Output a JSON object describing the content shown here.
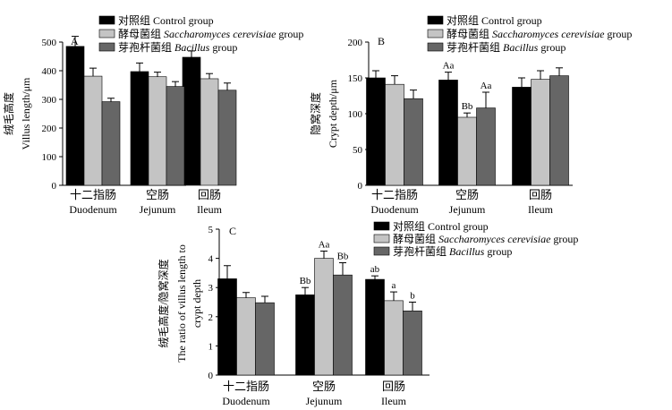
{
  "colors": {
    "control": "#000000",
    "saccharomyces": "#c4c4c4",
    "bacillus": "#666666"
  },
  "chart_data": [
    {
      "panel": "A",
      "type": "bar",
      "ylabel_cn": "绒毛高度",
      "ylabel_en": "Villus length/μm",
      "ylim": [
        0,
        500
      ],
      "yticks": [
        "0",
        "100",
        "200",
        "300",
        "400",
        "500"
      ],
      "categories_cn": [
        "十二指肠",
        "空肠",
        "回肠"
      ],
      "categories_en": [
        "Duodenum",
        "Jejunum",
        "Ileum"
      ],
      "legend": [
        {
          "cn": "对照组",
          "en": "Control group"
        },
        {
          "cn": "酵母菌组",
          "en": "Saccharomyces cerevisiae",
          "suffix": " group"
        },
        {
          "cn": "芽孢杆菌组",
          "en": "Bacillus",
          "suffix": " group"
        }
      ],
      "series": [
        {
          "values": [
            485,
            397,
            447
          ],
          "errors": [
            35,
            30,
            22
          ]
        },
        {
          "values": [
            381,
            379,
            372
          ],
          "errors": [
            28,
            16,
            18
          ]
        },
        {
          "values": [
            292,
            345,
            332
          ],
          "errors": [
            12,
            17,
            25
          ]
        }
      ],
      "annotations": []
    },
    {
      "panel": "B",
      "type": "bar",
      "ylabel_cn": "隐窝深度",
      "ylabel_en": "Crypt depth/μm",
      "ylim": [
        0,
        200
      ],
      "yticks": [
        "0",
        "50",
        "100",
        "150",
        "200"
      ],
      "categories_cn": [
        "十二指肠",
        "空肠",
        "回肠"
      ],
      "categories_en": [
        "Duodenum",
        "Jejunum",
        "Ileum"
      ],
      "legend": [
        {
          "cn": "对照组",
          "en": "Control group"
        },
        {
          "cn": "酵母菌组",
          "en": "Saccharomyces cerevisiae",
          "suffix": " group"
        },
        {
          "cn": "芽孢杆菌组",
          "en": "Bacillus",
          "suffix": " group"
        }
      ],
      "series": [
        {
          "values": [
            150,
            147,
            137
          ],
          "errors": [
            10,
            11,
            13
          ]
        },
        {
          "values": [
            141,
            95,
            148
          ],
          "errors": [
            12,
            6,
            12
          ]
        },
        {
          "values": [
            121,
            108,
            153
          ],
          "errors": [
            12,
            22,
            11
          ]
        }
      ],
      "annotations": [
        {
          "category": 1,
          "series": 0,
          "text": "Aa"
        },
        {
          "category": 1,
          "series": 1,
          "text": "Bb"
        },
        {
          "category": 1,
          "series": 2,
          "text": "Aa"
        }
      ]
    },
    {
      "panel": "C",
      "type": "bar",
      "ylabel_cn": "绒毛高度/隐窝深度",
      "ylabel_en_1": "The ratio of villus length to",
      "ylabel_en_2": "crypt depth",
      "ylim": [
        0,
        5
      ],
      "yticks": [
        "0",
        "1",
        "2",
        "3",
        "4",
        "5"
      ],
      "categories_cn": [
        "十二指肠",
        "空肠",
        "回肠"
      ],
      "categories_en": [
        "Duodenum",
        "Jejunum",
        "Ileum"
      ],
      "legend": [
        {
          "cn": "对照组",
          "en": "Control group"
        },
        {
          "cn": "酵母菌组",
          "en": "Saccharomyces cerevisiae",
          "suffix": " group"
        },
        {
          "cn": "芽孢杆菌组",
          "en": "Bacillus",
          "suffix": " group"
        }
      ],
      "series": [
        {
          "values": [
            3.3,
            2.75,
            3.28
          ],
          "errors": [
            0.45,
            0.25,
            0.12
          ]
        },
        {
          "values": [
            2.65,
            4.0,
            2.55
          ],
          "errors": [
            0.18,
            0.25,
            0.3
          ]
        },
        {
          "values": [
            2.48,
            3.43,
            2.2
          ],
          "errors": [
            0.22,
            0.42,
            0.3
          ]
        }
      ],
      "annotations": [
        {
          "category": 1,
          "series": 0,
          "text": "Bb"
        },
        {
          "category": 1,
          "series": 1,
          "text": "Aa"
        },
        {
          "category": 1,
          "series": 2,
          "text": "Bb"
        },
        {
          "category": 2,
          "series": 0,
          "text": "ab"
        },
        {
          "category": 2,
          "series": 1,
          "text": "a"
        },
        {
          "category": 2,
          "series": 2,
          "text": "b"
        }
      ]
    }
  ]
}
